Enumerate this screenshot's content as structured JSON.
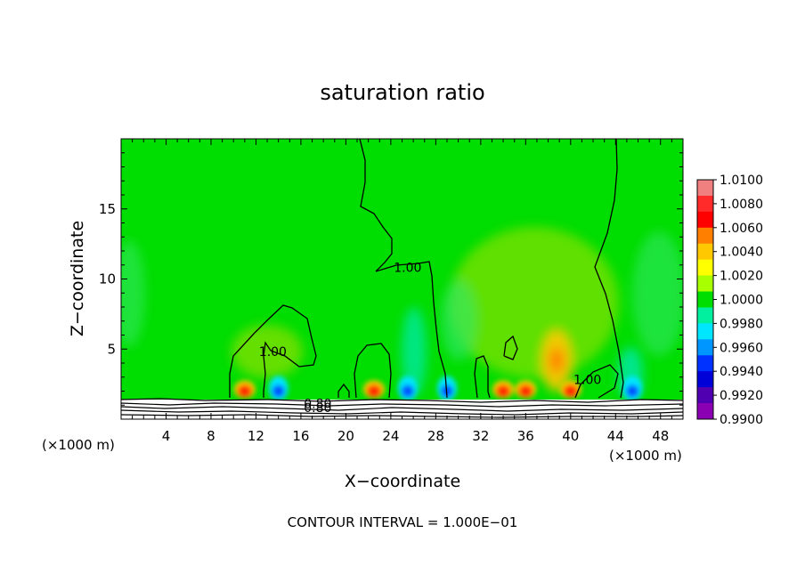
{
  "chart_data": {
    "type": "heatmap",
    "title": "saturation ratio",
    "xlabel": "X−coordinate",
    "ylabel": "Z−coordinate",
    "x_unit_left": "(×1000 m)",
    "x_unit_right": "(×1000 m)",
    "xlim": [
      0,
      50
    ],
    "ylim": [
      0,
      20
    ],
    "x_ticks": [
      4,
      8,
      12,
      16,
      20,
      24,
      28,
      32,
      36,
      40,
      44,
      48
    ],
    "y_ticks": [
      5,
      10,
      15
    ],
    "footer": "CONTOUR INTERVAL = 1.000E−01",
    "colorbar": {
      "labels": [
        "1.0100",
        "1.0080",
        "1.0060",
        "1.0040",
        "1.0020",
        "1.0000",
        "0.9980",
        "0.9960",
        "0.9940",
        "0.9920",
        "0.9900"
      ],
      "colors": [
        "#f08080",
        "#ff2a2a",
        "#ff0000",
        "#ff7f00",
        "#ffc800",
        "#ffff00",
        "#a8ff00",
        "#00dd00",
        "#00f0a0",
        "#00e6ff",
        "#0096ff",
        "#0032ff",
        "#0000d8",
        "#5000b0",
        "#8c00b4"
      ]
    },
    "contour_labels": [
      {
        "text": "1.00",
        "x": 25.5,
        "z": 10.5
      },
      {
        "text": "1.00",
        "x": 13.5,
        "z": 4.5
      },
      {
        "text": "1.00",
        "x": 41.5,
        "z": 2.5
      },
      {
        "text": "0.80",
        "x": 17.5,
        "z": 0.8
      },
      {
        "text": "0.80",
        "x": 17.5,
        "z": 0.5
      }
    ],
    "hotspots": [
      {
        "x": 11,
        "z": 2.0,
        "level": "high"
      },
      {
        "x": 22.5,
        "z": 2.0,
        "level": "high"
      },
      {
        "x": 34,
        "z": 2.0,
        "level": "high"
      },
      {
        "x": 36,
        "z": 2.0,
        "level": "high"
      },
      {
        "x": 38.5,
        "z": 4.0,
        "level": "mid"
      },
      {
        "x": 40,
        "z": 2.0,
        "level": "high"
      }
    ],
    "coldspots": [
      {
        "x": 14,
        "z": 2.0
      },
      {
        "x": 25.5,
        "z": 2.0
      },
      {
        "x": 29,
        "z": 2.0
      },
      {
        "x": 45.5,
        "z": 2.0
      }
    ]
  }
}
